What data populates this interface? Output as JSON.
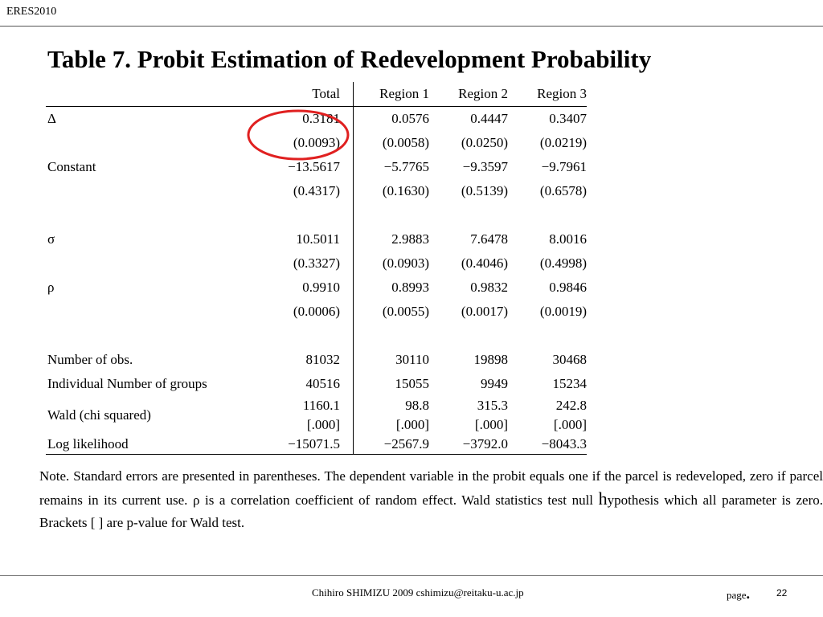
{
  "header": {
    "conference": "ERES2010"
  },
  "title": "Table 7. Probit Estimation of Redevelopment Probability",
  "table": {
    "columns": [
      "Total",
      "Region 1",
      "Region 2",
      "Region 3"
    ],
    "rows": [
      {
        "label": "Δ",
        "values": [
          "0.3181",
          "0.0576",
          "0.4447",
          "0.3407"
        ]
      },
      {
        "label": "",
        "values": [
          "(0.0093)",
          "(0.0058)",
          "(0.0250)",
          "(0.0219)"
        ]
      },
      {
        "label": "Constant",
        "values": [
          "−13.5617",
          "−5.7765",
          "−9.3597",
          "−9.7961"
        ]
      },
      {
        "label": "",
        "values": [
          "(0.4317)",
          "(0.1630)",
          "(0.5139)",
          "(0.6578)"
        ]
      },
      {
        "label": "",
        "values": [
          "",
          "",
          "",
          ""
        ]
      },
      {
        "label": "σ",
        "values": [
          "10.5011",
          "2.9883",
          "7.6478",
          "8.0016"
        ]
      },
      {
        "label": "",
        "values": [
          "(0.3327)",
          "(0.0903)",
          "(0.4046)",
          "(0.4998)"
        ]
      },
      {
        "label": "ρ",
        "values": [
          "0.9910",
          "0.8993",
          "0.9832",
          "0.9846"
        ]
      },
      {
        "label": "",
        "values": [
          "(0.0006)",
          "(0.0055)",
          "(0.0017)",
          "(0.0019)"
        ]
      },
      {
        "label": "",
        "values": [
          "",
          "",
          "",
          ""
        ]
      },
      {
        "label": "Number of obs.",
        "values": [
          "81032",
          "30110",
          "19898",
          "30468"
        ]
      },
      {
        "label": "Individual Number of groups",
        "values": [
          "40516",
          "15055",
          "9949",
          "15234"
        ]
      }
    ],
    "wald": {
      "label": "Wald (chi squared)",
      "values": [
        "1160.1",
        "98.8",
        "315.3",
        "242.8"
      ],
      "pvalues": [
        "[.000]",
        "[.000]",
        "[.000]",
        "[.000]"
      ]
    },
    "loglik": {
      "label": "Log likelihood",
      "values": [
        "−15071.5",
        "−2567.9",
        "−3792.0",
        "−8043.3"
      ]
    }
  },
  "note": {
    "part1": "Note. Standard errors are presented in parentheses. The dependent variable in the probit equals one if the parcel is redeveloped, zero if parcel remains in its current use. ρ is a correlation coefficient of random effect. Wald statistics test null ",
    "h": "h",
    "part2": "ypothesis which all parameter is zero. Brackets [ ] are p-value for Wald test."
  },
  "highlight": {
    "color": "#e02020"
  },
  "footer": {
    "author": "Chihiro SHIMIZU 2009 cshimizu@reitaku-u.ac.jp",
    "page_label": "page",
    "page_dot": ".",
    "page_number": "22"
  }
}
